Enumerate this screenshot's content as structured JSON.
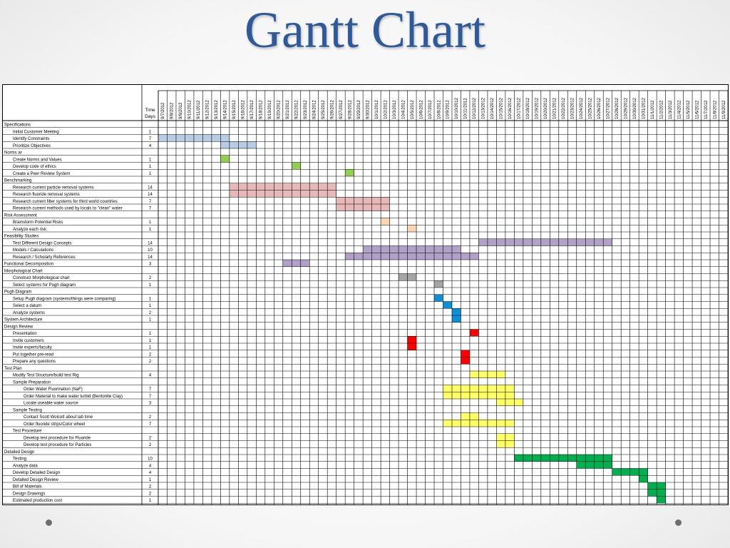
{
  "slide": {
    "title": "Gantt Chart"
  },
  "chart_data": {
    "type": "table",
    "title": "Gantt Chart",
    "duration_header": [
      "Time",
      "Days"
    ],
    "dates": [
      "9/7/2012",
      "9/8/2012",
      "9/9/2012",
      "9/10/2012",
      "9/11/2012",
      "9/12/2012",
      "9/13/2012",
      "9/14/2012",
      "9/15/2012",
      "9/16/2012",
      "9/17/2012",
      "9/18/2012",
      "9/19/2012",
      "9/20/2012",
      "9/21/2012",
      "9/22/2012",
      "9/23/2012",
      "9/24/2012",
      "9/25/2012",
      "9/26/2012",
      "9/27/2012",
      "9/28/2012",
      "9/29/2012",
      "9/30/2012",
      "10/1/2012",
      "10/2/2012",
      "10/3/2012",
      "10/4/2012",
      "10/5/2012",
      "10/6/2012",
      "10/7/2012",
      "10/8/2012",
      "10/9/2012",
      "10/10/2012",
      "10/11/2012",
      "10/12/2012",
      "10/13/2012",
      "10/14/2012",
      "10/15/2012",
      "10/16/2012",
      "10/17/2012",
      "10/18/2012",
      "10/19/2012",
      "10/20/2012",
      "10/21/2012",
      "10/22/2012",
      "10/23/2012",
      "10/24/2012",
      "10/25/2012",
      "10/26/2012",
      "10/27/2012",
      "10/28/2012",
      "10/29/2012",
      "10/30/2012",
      "10/31/2012",
      "11/1/2012",
      "11/2/2012",
      "11/3/2012",
      "11/4/2012",
      "11/5/2012",
      "11/6/2012",
      "11/7/2012",
      "11/8/2012",
      "11/9/2012"
    ],
    "colors": {
      "blue_light": "#b8cce4",
      "green_light": "#92d050",
      "pink": "#e6b9b8",
      "peach": "#fcd5b4",
      "purple": "#b1a0c7",
      "gray": "#a6a6a6",
      "blue": "#0a8fd8",
      "red": "#ff0000",
      "yellow": "#ffff66",
      "green": "#00b050"
    },
    "tasks": [
      {
        "name": "Specifications",
        "level": 0,
        "days": "",
        "bars": []
      },
      {
        "name": "Initial Customer Meeting",
        "level": 1,
        "days": "1",
        "bars": []
      },
      {
        "name": "Identify Constraints",
        "level": 1,
        "days": "7",
        "bars": [
          {
            "start": "9/7/2012",
            "end": "9/14/2012",
            "color": "blue_light"
          }
        ]
      },
      {
        "name": "Prioritize Objectives",
        "level": 1,
        "days": "4",
        "bars": [
          {
            "start": "9/14/2012",
            "end": "9/17/2012",
            "color": "blue_light"
          }
        ]
      },
      {
        "name": "Norms ar",
        "level": 0,
        "days": "",
        "bars": []
      },
      {
        "name": "Create Norms and Values",
        "level": 1,
        "days": "1",
        "bars": [
          {
            "start": "9/14/2012",
            "end": "9/14/2012",
            "color": "green_light"
          }
        ]
      },
      {
        "name": "Develop code of ethics",
        "level": 1,
        "days": "1",
        "bars": [
          {
            "start": "9/22/2012",
            "end": "9/22/2012",
            "color": "green_light"
          }
        ]
      },
      {
        "name": "Create a Peer Review System",
        "level": 1,
        "days": "1",
        "bars": [
          {
            "start": "9/28/2012",
            "end": "9/28/2012",
            "color": "green_light"
          }
        ]
      },
      {
        "name": "Benchmarking",
        "level": 0,
        "days": "",
        "bars": []
      },
      {
        "name": "Research current particle removal systems",
        "level": 1,
        "days": "14",
        "bars": [
          {
            "start": "9/15/2012",
            "end": "9/26/2012",
            "color": "pink"
          }
        ]
      },
      {
        "name": "Research fluoride removal systems",
        "level": 1,
        "days": "14",
        "bars": [
          {
            "start": "9/15/2012",
            "end": "9/26/2012",
            "color": "pink"
          }
        ]
      },
      {
        "name": "Research current filter systems for third world countries",
        "level": 1,
        "days": "7",
        "bars": [
          {
            "start": "9/27/2012",
            "end": "10/2/2012",
            "color": "pink"
          }
        ]
      },
      {
        "name": "Research current methods used by locals to \"clean\" water",
        "level": 1,
        "days": "7",
        "bars": [
          {
            "start": "9/27/2012",
            "end": "10/2/2012",
            "color": "pink"
          }
        ]
      },
      {
        "name": "Risk Assessment",
        "level": 0,
        "days": "",
        "bars": []
      },
      {
        "name": "Brainstorm Potential Risks",
        "level": 1,
        "days": "1",
        "bars": [
          {
            "start": "10/2/2012",
            "end": "10/2/2012",
            "color": "peach"
          }
        ]
      },
      {
        "name": "Analyze each risk",
        "level": 1,
        "days": "1",
        "bars": [
          {
            "start": "10/5/2012",
            "end": "10/5/2012",
            "color": "peach"
          }
        ]
      },
      {
        "name": "Feasibility Studies",
        "level": 0,
        "days": "",
        "bars": []
      },
      {
        "name": "Test Different Design Concepts",
        "level": 1,
        "days": "14",
        "bars": [
          {
            "start": "10/13/2012",
            "end": "10/27/2012",
            "color": "purple"
          }
        ]
      },
      {
        "name": "Models / Calculations",
        "level": 1,
        "days": "10",
        "bars": [
          {
            "start": "9/30/2012",
            "end": "10/10/2012",
            "color": "purple"
          }
        ]
      },
      {
        "name": "Research / Scholarly References",
        "level": 1,
        "days": "14",
        "bars": [
          {
            "start": "9/28/2012",
            "end": "10/12/2012",
            "color": "purple"
          }
        ]
      },
      {
        "name": "Functional Decomposition",
        "level": 0,
        "days": "3",
        "bars": [
          {
            "start": "9/21/2012",
            "end": "9/23/2012",
            "color": "purple"
          }
        ]
      },
      {
        "name": "Morphological Chart",
        "level": 0,
        "days": "",
        "bars": []
      },
      {
        "name": "Construct Morphological chart",
        "level": 1,
        "days": "2",
        "bars": [
          {
            "start": "10/4/2012",
            "end": "10/5/2012",
            "color": "gray"
          }
        ]
      },
      {
        "name": "Select systems for Pugh diagram",
        "level": 1,
        "days": "1",
        "bars": [
          {
            "start": "10/8/2012",
            "end": "10/8/2012",
            "color": "gray"
          }
        ]
      },
      {
        "name": "Pugh Diagram",
        "level": 0,
        "days": "",
        "bars": []
      },
      {
        "name": "Setup Pugh diagram (systems/things were comparing)",
        "level": 1,
        "days": "1",
        "bars": [
          {
            "start": "10/8/2012",
            "end": "10/8/2012",
            "color": "blue"
          }
        ]
      },
      {
        "name": "Select a datum",
        "level": 1,
        "days": "1",
        "bars": [
          {
            "start": "10/9/2012",
            "end": "10/9/2012",
            "color": "blue"
          }
        ]
      },
      {
        "name": "Analyze systems",
        "level": 1,
        "days": "2",
        "bars": [
          {
            "start": "10/10/2012",
            "end": "10/10/2012",
            "color": "blue"
          }
        ]
      },
      {
        "name": "System Architecture",
        "level": 0,
        "days": "1",
        "bars": [
          {
            "start": "10/10/2012",
            "end": "10/10/2012",
            "color": "blue"
          }
        ]
      },
      {
        "name": "Design Review",
        "level": 0,
        "days": "",
        "bars": []
      },
      {
        "name": "Presentation",
        "level": 1,
        "days": "1",
        "bars": [
          {
            "start": "10/12/2012",
            "end": "10/12/2012",
            "color": "red"
          }
        ]
      },
      {
        "name": "Invite customers",
        "level": 1,
        "days": "1",
        "bars": [
          {
            "start": "10/5/2012",
            "end": "10/5/2012",
            "color": "red"
          }
        ]
      },
      {
        "name": "Invite experts/faculty",
        "level": 1,
        "days": "1",
        "bars": [
          {
            "start": "10/5/2012",
            "end": "10/5/2012",
            "color": "red"
          }
        ]
      },
      {
        "name": "Put together pre-read",
        "level": 1,
        "days": "2",
        "bars": [
          {
            "start": "10/11/2012",
            "end": "10/11/2012",
            "color": "red"
          }
        ]
      },
      {
        "name": "Prepare any questions",
        "level": 1,
        "days": "2",
        "bars": [
          {
            "start": "10/11/2012",
            "end": "10/11/2012",
            "color": "red"
          }
        ]
      },
      {
        "name": "Test Plan",
        "level": 0,
        "days": "",
        "bars": []
      },
      {
        "name": "Modify Test Structure/build test Rig",
        "level": 1,
        "days": "4",
        "bars": [
          {
            "start": "10/12/2012",
            "end": "10/15/2012",
            "color": "yellow"
          }
        ]
      },
      {
        "name": "Sample Preparation",
        "level": 1,
        "days": "",
        "bars": []
      },
      {
        "name": "Order Water Fluorination (NaF)",
        "level": 2,
        "days": "7",
        "bars": [
          {
            "start": "10/9/2012",
            "end": "10/16/2012",
            "color": "yellow"
          }
        ]
      },
      {
        "name": "Order Material to make water turbid (Bentonite Clay)",
        "level": 2,
        "days": "7",
        "bars": [
          {
            "start": "10/9/2012",
            "end": "10/16/2012",
            "color": "yellow"
          }
        ]
      },
      {
        "name": "Locate useable water source",
        "level": 2,
        "days": "3",
        "bars": [
          {
            "start": "10/15/2012",
            "end": "10/17/2012",
            "color": "yellow"
          }
        ]
      },
      {
        "name": "Sample Testing",
        "level": 1,
        "days": "",
        "bars": []
      },
      {
        "name": "Contact Scott Wolcott about lab time",
        "level": 2,
        "days": "2",
        "bars": [
          {
            "start": "10/11/2012",
            "end": "10/12/2012",
            "color": "yellow"
          }
        ]
      },
      {
        "name": "Order fluoride strips/Color wheel",
        "level": 2,
        "days": "7",
        "bars": [
          {
            "start": "10/9/2012",
            "end": "10/16/2012",
            "color": "yellow"
          }
        ]
      },
      {
        "name": "Test Procedure",
        "level": 1,
        "days": "",
        "bars": []
      },
      {
        "name": "Develop test procedure for Fluoride",
        "level": 2,
        "days": "2",
        "bars": [
          {
            "start": "10/15/2012",
            "end": "10/16/2012",
            "color": "yellow"
          }
        ]
      },
      {
        "name": "Develop test procedure for Particles",
        "level": 2,
        "days": "2",
        "bars": [
          {
            "start": "10/15/2012",
            "end": "10/16/2012",
            "color": "yellow"
          }
        ]
      },
      {
        "name": "Detailed Design",
        "level": 0,
        "days": "",
        "bars": []
      },
      {
        "name": "Testing",
        "level": 1,
        "days": "10",
        "bars": [
          {
            "start": "10/17/2012",
            "end": "10/27/2012",
            "color": "green"
          }
        ]
      },
      {
        "name": "Analyze data",
        "level": 1,
        "days": "4",
        "bars": [
          {
            "start": "10/24/2012",
            "end": "10/27/2012",
            "color": "green"
          }
        ]
      },
      {
        "name": "Develop Detailed Design",
        "level": 1,
        "days": "4",
        "bars": [
          {
            "start": "10/28/2012",
            "end": "10/31/2012",
            "color": "green"
          }
        ]
      },
      {
        "name": "Detailed Design Review",
        "level": 1,
        "days": "1",
        "bars": [
          {
            "start": "10/31/2012",
            "end": "10/31/2012",
            "color": "green"
          }
        ]
      },
      {
        "name": "Bill of Materials",
        "level": 1,
        "days": "2",
        "bars": [
          {
            "start": "11/1/2012",
            "end": "11/2/2012",
            "color": "green"
          }
        ]
      },
      {
        "name": "Design Drawings",
        "level": 1,
        "days": "2",
        "bars": [
          {
            "start": "11/1/2012",
            "end": "11/2/2012",
            "color": "green"
          }
        ]
      },
      {
        "name": "Estimated production cost",
        "level": 1,
        "days": "1",
        "bars": [
          {
            "start": "11/2/2012",
            "end": "11/2/2012",
            "color": "green"
          }
        ]
      }
    ]
  }
}
